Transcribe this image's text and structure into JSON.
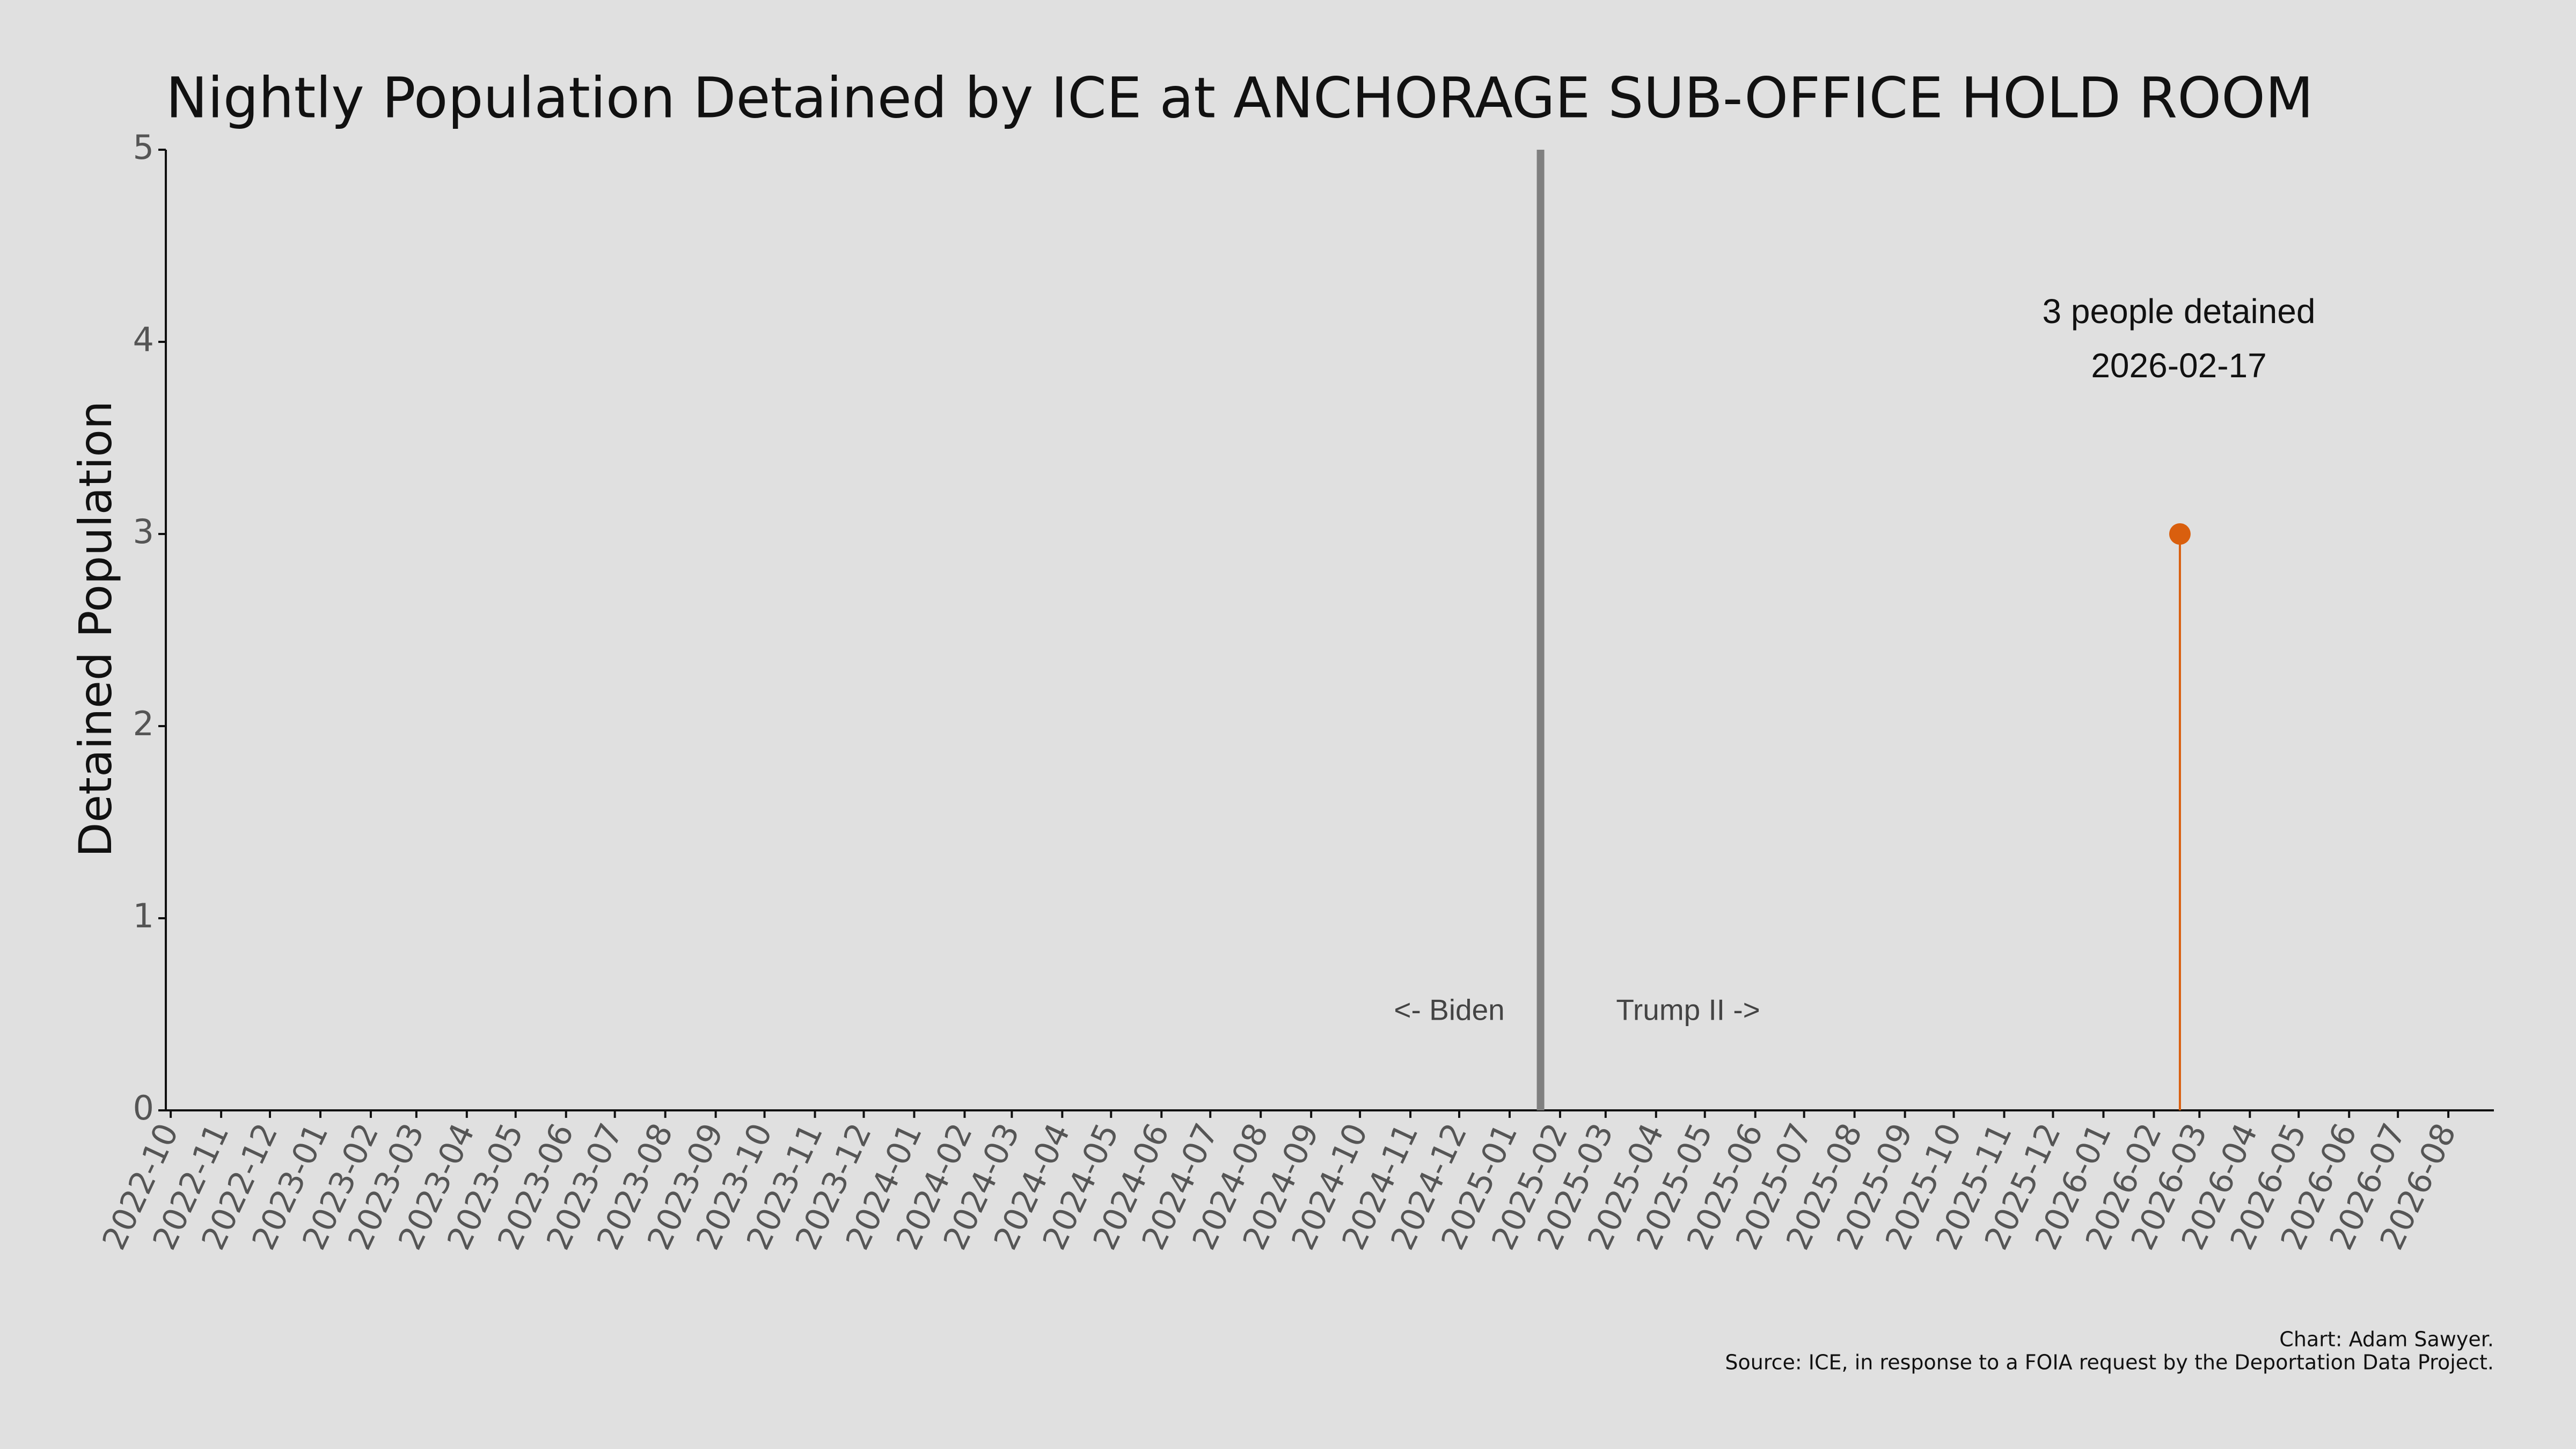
{
  "chart_data": {
    "type": "lollipop",
    "title": "Nightly Population Detained by ICE at ANCHORAGE SUB-OFFICE HOLD ROOM",
    "ylabel": "Detained Population",
    "x": [
      "2026-02-17"
    ],
    "values": [
      3
    ],
    "color": "#d95f0e",
    "xlim": [
      "2022-09-28",
      "2026-08-29"
    ],
    "ylim": [
      0,
      5
    ],
    "yticks": [
      0,
      1,
      2,
      3,
      4,
      5
    ],
    "xticks": [
      "2022-10",
      "2022-11",
      "2022-12",
      "2023-01",
      "2023-02",
      "2023-03",
      "2023-04",
      "2023-05",
      "2023-06",
      "2023-07",
      "2023-08",
      "2023-09",
      "2023-10",
      "2023-11",
      "2023-12",
      "2024-01",
      "2024-02",
      "2024-03",
      "2024-04",
      "2024-05",
      "2024-06",
      "2024-07",
      "2024-08",
      "2024-09",
      "2024-10",
      "2024-11",
      "2024-12",
      "2025-01",
      "2025-02",
      "2025-03",
      "2025-04",
      "2025-05",
      "2025-06",
      "2025-07",
      "2025-08",
      "2025-09",
      "2025-10",
      "2025-11",
      "2025-12",
      "2026-01",
      "2026-02",
      "2026-03",
      "2026-04",
      "2026-05",
      "2026-06",
      "2026-07",
      "2026-08"
    ],
    "vline": {
      "x": "2025-01-20",
      "color": "#808080",
      "left_label": "<- Biden",
      "right_label": "Trump II ->"
    },
    "annotation": [
      "3 people detained",
      "2026-02-17"
    ],
    "credits": [
      "Chart: Adam Sawyer.",
      "Source: ICE, in response to a FOIA request by the Deportation Data Project."
    ]
  }
}
